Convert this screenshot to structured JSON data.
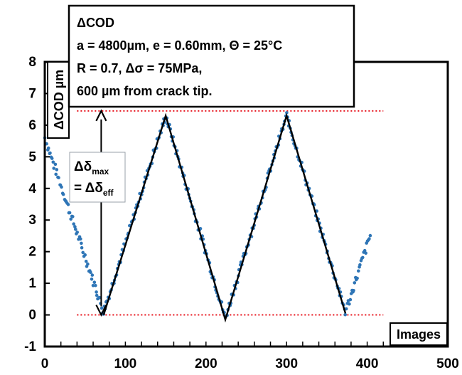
{
  "chart_data": {
    "type": "scatter",
    "title_box": {
      "lines": [
        "ΔCOD",
        "a = 4800µm, e = 0.60mm, Θ = 25°C",
        "R = 0.7, Δσ = 75MPa,",
        "600 µm from crack tip."
      ]
    },
    "ylabel": "ΔCOD µm",
    "xlabel": "Images",
    "xlim": [
      0,
      500
    ],
    "ylim": [
      -1,
      8
    ],
    "xticks": [
      "0",
      "100",
      "200",
      "300",
      "400",
      "500"
    ],
    "yticks": [
      "-1",
      "0",
      "1",
      "2",
      "3",
      "4",
      "5",
      "6",
      "7",
      "8"
    ],
    "grid": false,
    "annotation": {
      "line1_main": "Δδ",
      "line1_sub": "max",
      "line2_main": "= Δδ",
      "line2_sub": "eff"
    },
    "reference_lines": {
      "upper": 6.45,
      "lower": 0.0,
      "x_range": [
        40,
        420
      ]
    },
    "arrow_x": 70,
    "fit_line": {
      "x": [
        73,
        150,
        224,
        300,
        373
      ],
      "y": [
        0.0,
        6.3,
        -0.15,
        6.3,
        0.05
      ]
    },
    "series": [
      {
        "color": "#2E75B6",
        "keyframes": {
          "x": [
            0,
            73,
            150,
            224,
            300,
            373,
            405
          ],
          "y": [
            5.6,
            0.1,
            6.3,
            -0.1,
            6.3,
            0.1,
            2.6
          ]
        }
      }
    ],
    "colors": {
      "points": "#2E75B6",
      "fit": "#000000",
      "ref": "#E8141E"
    }
  }
}
